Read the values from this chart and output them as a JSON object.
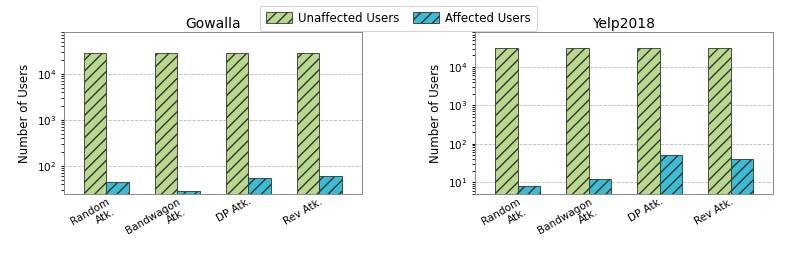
{
  "gowalla": {
    "title": "Gowalla",
    "categories": [
      "Random\nAtk.",
      "Bandwagon\nAtk.",
      "DP Atk.",
      "Rev Atk."
    ],
    "unaffected": [
      29000,
      29000,
      29000,
      29000
    ],
    "affected": [
      45,
      28,
      55,
      60
    ]
  },
  "yelp2018": {
    "title": "Yelp2018",
    "categories": [
      "Random\nAtk.",
      "Bandwagon\nAtk.",
      "DP Atk.",
      "Rev Atk."
    ],
    "unaffected": [
      31000,
      31000,
      31000,
      31000
    ],
    "affected": [
      8,
      12,
      52,
      40
    ]
  },
  "ylabel": "Number of Users",
  "legend_labels": [
    "Unaffected Users",
    "Affected Users"
  ],
  "unaffected_color": "#b8d98d",
  "affected_color": "#3bbcd4",
  "hatch_unaffected": "///",
  "hatch_affected": "///",
  "ylim_gowalla": [
    25,
    80000
  ],
  "ylim_yelp": [
    5,
    80000
  ],
  "bar_width": 0.32,
  "figsize": [
    7.97,
    2.69
  ],
  "dpi": 100,
  "title_fontsize": 10,
  "label_fontsize": 8.5,
  "tick_fontsize": 7.5,
  "legend_fontsize": 8.5
}
